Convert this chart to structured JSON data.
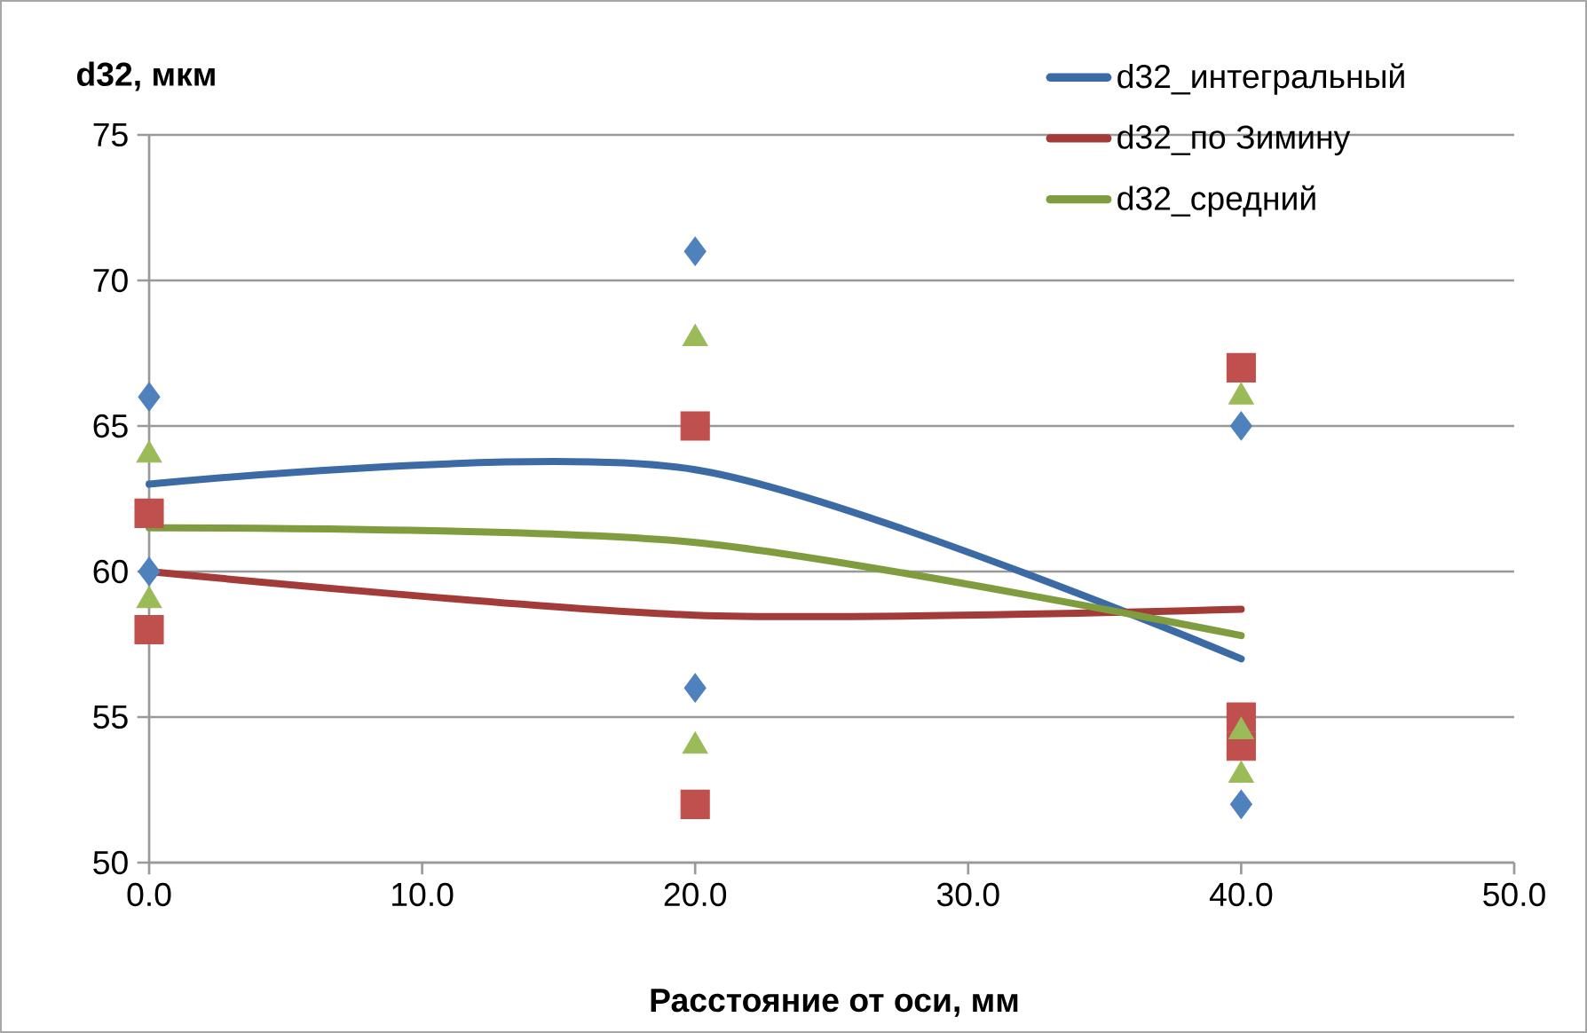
{
  "chart_data": {
    "type": "line",
    "xlabel": "Расстояние от оси, мм",
    "ylabel": "d32, мкм",
    "xlim": [
      0,
      50
    ],
    "ylim": [
      50,
      75
    ],
    "xticks": [
      {
        "value": 0,
        "label": "0.0"
      },
      {
        "value": 10,
        "label": "10.0"
      },
      {
        "value": 20,
        "label": "20.0"
      },
      {
        "value": 30,
        "label": "30.0"
      },
      {
        "value": 40,
        "label": "40.0"
      },
      {
        "value": 50,
        "label": "50.0"
      }
    ],
    "yticks": [
      50,
      55,
      60,
      65,
      70,
      75
    ],
    "grid": "y",
    "legend": "top right",
    "line_style": "solid",
    "marker": "none",
    "series": [
      {
        "name": "d32_интегральный",
        "color": "#3c6aa5",
        "x": [
          0,
          20,
          40
        ],
        "values": [
          63.0,
          63.5,
          57.0
        ]
      },
      {
        "name": "d32_по Зимину",
        "color": "#a33b38",
        "x": [
          0,
          20,
          40
        ],
        "values": [
          60.0,
          58.5,
          58.7
        ]
      },
      {
        "name": "d32_средний",
        "color": "#7f9d3f",
        "x": [
          0,
          20,
          40
        ],
        "values": [
          61.5,
          61.0,
          57.8
        ]
      },
      {
        "type": "scatter",
        "marker": "diamond",
        "color": "#4f81bd",
        "x": [
          0,
          0,
          20,
          20,
          40,
          40
        ],
        "values": [
          66,
          60,
          71,
          56,
          65,
          52
        ]
      },
      {
        "type": "scatter",
        "marker": "square",
        "color": "#c0504d",
        "x": [
          0,
          0,
          20,
          20,
          40,
          40,
          40
        ],
        "values": [
          62,
          58,
          65,
          52,
          67,
          55,
          54
        ]
      },
      {
        "type": "scatter",
        "marker": "triangle",
        "color": "#9bbb59",
        "x": [
          0,
          0,
          20,
          20,
          40,
          40,
          40
        ],
        "values": [
          64,
          59,
          68,
          54,
          66,
          54.5,
          53
        ]
      }
    ]
  }
}
